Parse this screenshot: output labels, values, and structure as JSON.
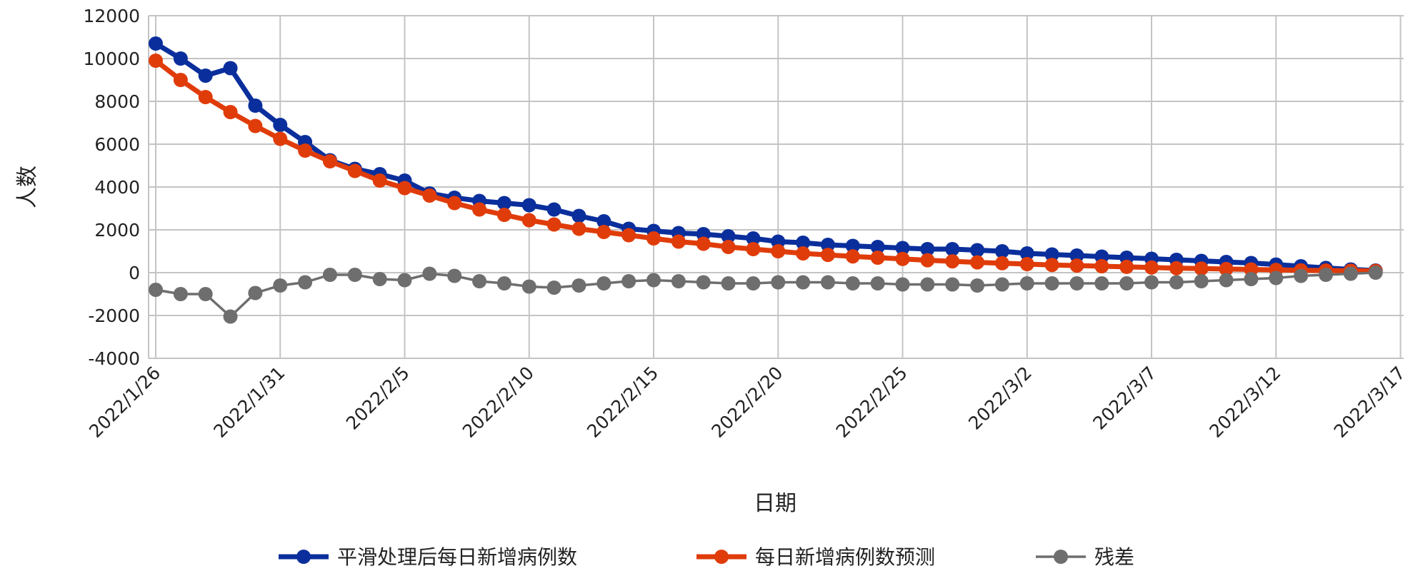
{
  "chart_data": {
    "type": "line",
    "title": "",
    "xlabel": "日期",
    "ylabel": "人数",
    "ylim": [
      -4000,
      12000
    ],
    "yticks": [
      -4000,
      -2000,
      0,
      2000,
      4000,
      6000,
      8000,
      10000,
      12000
    ],
    "start_date": "2022/1/26",
    "xtick_labels": [
      "2022/1/26",
      "2022/1/31",
      "2022/2/5",
      "2022/2/10",
      "2022/2/15",
      "2022/2/20",
      "2022/2/25",
      "2022/3/2",
      "2022/3/7",
      "2022/3/12",
      "2022/3/17"
    ],
    "xtick_step_days": 5,
    "grid": true,
    "legend_position": "bottom",
    "series": [
      {
        "name": "平滑处理后每日新增病例数",
        "color": "#0a2f9c",
        "values": [
          10700,
          10000,
          9200,
          9550,
          7800,
          6900,
          6100,
          5250,
          4850,
          4600,
          4300,
          3700,
          3500,
          3350,
          3250,
          3150,
          2950,
          2650,
          2400,
          2050,
          1950,
          1850,
          1800,
          1700,
          1600,
          1450,
          1400,
          1300,
          1250,
          1200,
          1150,
          1100,
          1100,
          1050,
          1000,
          900,
          850,
          800,
          750,
          700,
          650,
          600,
          550,
          500,
          450,
          380,
          300,
          220,
          150,
          100
        ]
      },
      {
        "name": "每日新增病例数预测",
        "color": "#e03c0a",
        "values": [
          9900,
          9000,
          8200,
          7500,
          6850,
          6250,
          5700,
          5200,
          4750,
          4300,
          3950,
          3600,
          3250,
          2950,
          2700,
          2450,
          2250,
          2050,
          1900,
          1750,
          1600,
          1450,
          1350,
          1200,
          1100,
          1000,
          900,
          830,
          760,
          700,
          640,
          580,
          530,
          480,
          440,
          400,
          360,
          330,
          300,
          270,
          240,
          210,
          190,
          170,
          150,
          130,
          110,
          100,
          90,
          80
        ]
      },
      {
        "name": "残差",
        "color": "#6e6e6e",
        "values": [
          -800,
          -1000,
          -1000,
          -2050,
          -950,
          -600,
          -450,
          -100,
          -100,
          -300,
          -350,
          -50,
          -150,
          -400,
          -500,
          -650,
          -700,
          -600,
          -500,
          -400,
          -350,
          -400,
          -450,
          -500,
          -500,
          -450,
          -450,
          -450,
          -500,
          -500,
          -550,
          -550,
          -550,
          -600,
          -550,
          -500,
          -500,
          -500,
          -500,
          -500,
          -450,
          -450,
          -400,
          -350,
          -300,
          -250,
          -150,
          -100,
          -50,
          0
        ]
      }
    ]
  }
}
